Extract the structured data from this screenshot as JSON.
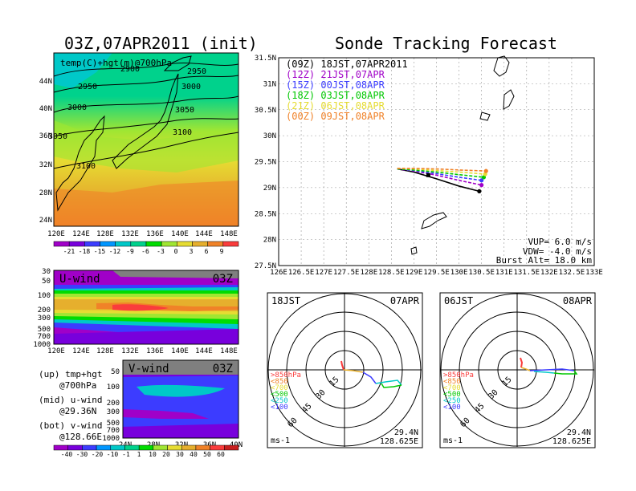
{
  "page_title_left": "03Z,07APR2011 (init)",
  "page_title_right": "Sonde Tracking Forecast",
  "map700": {
    "label": "temp(C)+hgt(m)@700hPa",
    "lat_ticks": [
      "44N",
      "40N",
      "36N",
      "32N",
      "28N",
      "24N"
    ],
    "lon_ticks": [
      "120E",
      "124E",
      "128E",
      "132E",
      "136E",
      "140E",
      "144E",
      "148E"
    ],
    "contour_labels": [
      "2900",
      "2950",
      "2950",
      "3000",
      "3000",
      "3050",
      "3050",
      "3100",
      "3100"
    ],
    "colorbar_labels": [
      "-21",
      "-18",
      "-15",
      "-12",
      "-9",
      "-6",
      "-3",
      "0",
      "3",
      "6",
      "9"
    ],
    "colorbar_colors": [
      "#a000c8",
      "#7800dc",
      "#3c3cff",
      "#0096ff",
      "#00c8c8",
      "#00d28c",
      "#00dc00",
      "#a0e632",
      "#e6dc32",
      "#e6af2d",
      "#f08228",
      "#fa3c3c"
    ]
  },
  "uwind": {
    "label": "U-wind",
    "time": "03Z",
    "y_ticks": [
      "30",
      "50",
      "100",
      "200",
      "300",
      "500",
      "700",
      "1000"
    ],
    "x_ticks": [
      "120E",
      "124E",
      "128E",
      "132E",
      "136E",
      "140E",
      "144E",
      "148E"
    ]
  },
  "vwind": {
    "label": "V-wind",
    "time": "03Z",
    "y_ticks": [
      "50",
      "100",
      "200",
      "300",
      "500",
      "700",
      "1000"
    ],
    "x_ticks": [
      "24N",
      "28N",
      "32N",
      "36N",
      "40N"
    ],
    "colorbar_labels": [
      "-40",
      "-30",
      "-20",
      "-10",
      "-1",
      "1",
      "10",
      "20",
      "30",
      "40",
      "50",
      "60"
    ]
  },
  "legend": {
    "up1": "(up) tmp+hgt",
    "up2": "@700hPa",
    "mid1": "(mid) u-wind",
    "mid2": "@29.36N",
    "bot1": "(bot) v-wind",
    "bot2": "@128.66E"
  },
  "chart_data": {
    "type": "line",
    "x_ticks": [
      "126E",
      "126.5E",
      "127E",
      "127.5E",
      "128E",
      "128.5E",
      "129E",
      "129.5E",
      "130E",
      "130.5E",
      "131E",
      "131.5E",
      "132E",
      "132.5E",
      "133E"
    ],
    "y_ticks": [
      "31.5N",
      "31N",
      "30.5N",
      "30N",
      "29.5N",
      "29N",
      "28.5N",
      "28N",
      "27.5N"
    ],
    "xlim": [
      126,
      133
    ],
    "ylim": [
      27.5,
      31.5
    ],
    "grid": true,
    "series": [
      {
        "name": "(09Z) 18JST,07APR2011",
        "color": "#000000",
        "x": [
          128.63,
          129.0,
          129.5,
          130.0,
          130.45
        ],
        "y": [
          29.36,
          29.3,
          29.17,
          29.03,
          28.93
        ]
      },
      {
        "name": "(12Z) 21JST,07APR",
        "color": "#a000c8",
        "x": [
          128.63,
          129.0,
          129.5,
          130.0,
          130.5
        ],
        "y": [
          29.36,
          29.32,
          29.24,
          29.14,
          29.05
        ]
      },
      {
        "name": "(15Z) 00JST,08APR",
        "color": "#3c3cff",
        "x": [
          128.63,
          129.0,
          129.5,
          130.0,
          130.5
        ],
        "y": [
          29.36,
          29.33,
          29.27,
          29.2,
          29.14
        ]
      },
      {
        "name": "(18Z) 03JST,08APR",
        "color": "#00c800",
        "x": [
          128.63,
          129.0,
          129.5,
          130.0,
          130.55
        ],
        "y": [
          29.36,
          29.34,
          29.3,
          29.25,
          29.2
        ]
      },
      {
        "name": "(21Z) 06JST,08APR",
        "color": "#e6dc32",
        "x": [
          128.63,
          129.0,
          129.5,
          130.0,
          130.58
        ],
        "y": [
          29.37,
          29.36,
          29.33,
          29.3,
          29.26
        ]
      },
      {
        "name": "(00Z) 09JST,08APR",
        "color": "#f08228",
        "x": [
          128.63,
          129.0,
          129.5,
          130.0,
          130.6
        ],
        "y": [
          29.37,
          29.37,
          29.36,
          29.34,
          29.32
        ]
      }
    ],
    "start_marker": {
      "x": 129.32,
      "y": 29.24
    },
    "params": [
      "VUP= 6.0 m/s",
      "VDW= -4.0 m/s",
      "Burst Alt= 18.0 km"
    ]
  },
  "hodo_left": {
    "left": "18JST",
    "right": "07APR",
    "lat": "29.4N",
    "lon": "128.625E",
    "unit": "ms-1",
    "rings": [
      "15",
      "30",
      "45",
      "60"
    ],
    "levels": [
      ">850hPa",
      "<850",
      "<700",
      "<500",
      "<250",
      "<100"
    ]
  },
  "hodo_right": {
    "left": "06JST",
    "right": "08APR",
    "lat": "29.4N",
    "lon": "128.625E",
    "unit": "ms-1",
    "rings": [
      "15",
      "30",
      "45",
      "60"
    ],
    "levels": [
      ">850hPa",
      "<850",
      "<700",
      "<500",
      "<250",
      "<100"
    ]
  }
}
